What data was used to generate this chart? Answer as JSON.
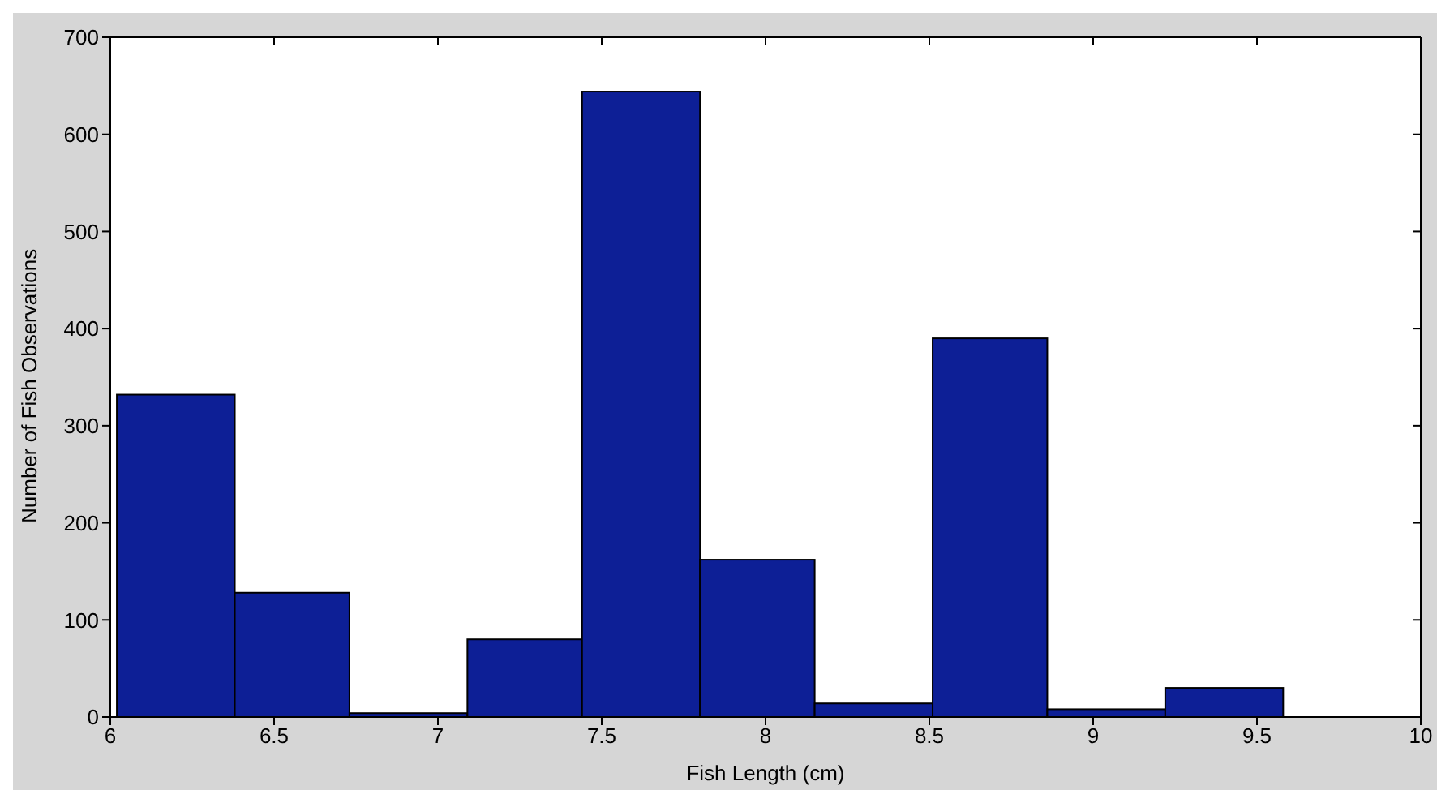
{
  "chart_data": {
    "type": "histogram",
    "xlabel": "Fish Length (cm)",
    "ylabel": "Number of Fish Observations",
    "bins": [
      6.02,
      6.38,
      6.73,
      7.09,
      7.44,
      7.8,
      8.15,
      8.51,
      8.86,
      9.22,
      9.58
    ],
    "values": [
      332,
      128,
      4,
      80,
      644,
      162,
      14,
      390,
      8,
      30
    ],
    "color": "#0d1f96",
    "xlim": [
      6,
      10
    ],
    "xticks": [
      6,
      6.5,
      7,
      7.5,
      8,
      8.5,
      9,
      9.5,
      10
    ],
    "ylim": [
      0,
      700
    ],
    "yticks": [
      0,
      100,
      200,
      300,
      400,
      500,
      600,
      700
    ]
  }
}
